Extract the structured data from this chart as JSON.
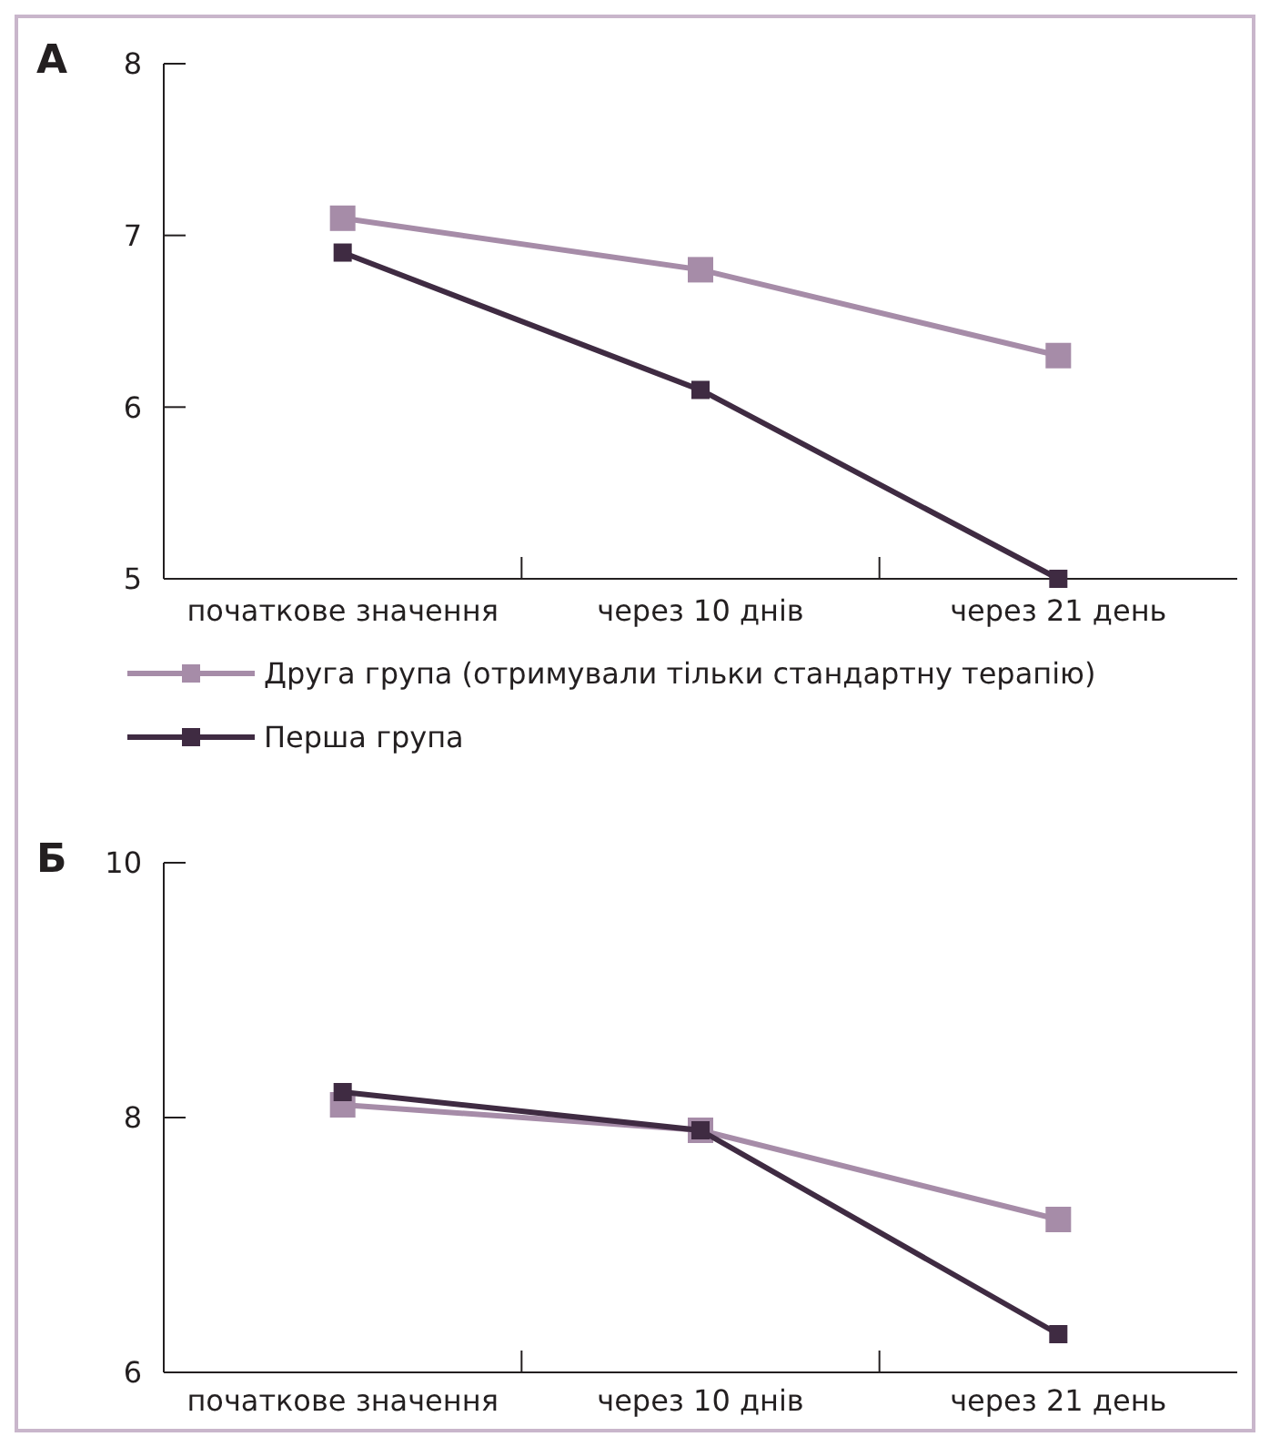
{
  "chart_data": [
    {
      "type": "line",
      "title": "А",
      "categories": [
        "початкове значення",
        "через 10 днів",
        "через 21 день"
      ],
      "ylim": [
        5,
        8
      ],
      "yticks": [
        5,
        6,
        7,
        8
      ],
      "marker": "square",
      "legend": "bottom",
      "grid": false,
      "series": [
        {
          "name": "Друга група (отримували тільки стандартну терапію)",
          "color": "#a68ca8",
          "values": [
            7.1,
            6.8,
            6.3
          ]
        },
        {
          "name": "Перша група",
          "color": "#3f2b42",
          "values": [
            6.9,
            6.1,
            5.0
          ]
        }
      ]
    },
    {
      "type": "line",
      "title": "Б",
      "categories": [
        "початкове значення",
        "через 10 днів",
        "через 21 день"
      ],
      "ylim": [
        6,
        10
      ],
      "yticks": [
        6,
        8,
        10
      ],
      "marker": "square",
      "grid": false,
      "series": [
        {
          "color": "#a68ca8",
          "values": [
            8.1,
            7.9,
            7.2
          ]
        },
        {
          "color": "#3f2b42",
          "values": [
            8.2,
            7.9,
            6.3
          ]
        }
      ]
    }
  ]
}
